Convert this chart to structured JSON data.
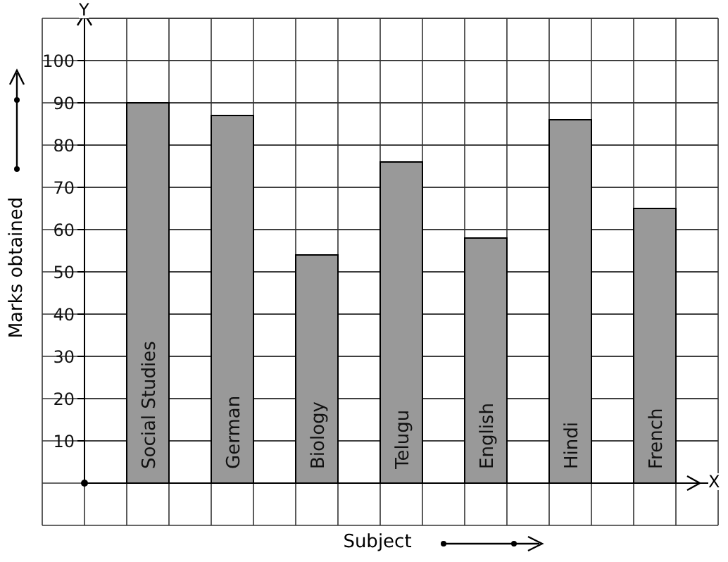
{
  "chart_data": {
    "type": "bar",
    "xlabel": "Subject",
    "ylabel": "Marks obtained",
    "categories": [
      "Social Studies",
      "German",
      "Biology",
      "Telugu",
      "English",
      "Hindi",
      "French"
    ],
    "values": [
      90,
      87,
      54,
      76,
      58,
      86,
      65
    ],
    "color": "#999999",
    "ylim": [
      0,
      110
    ],
    "yticks": [
      10,
      20,
      30,
      40,
      50,
      60,
      70,
      80,
      90,
      100
    ],
    "grid": true,
    "annotations": [
      "Y",
      "X"
    ]
  }
}
